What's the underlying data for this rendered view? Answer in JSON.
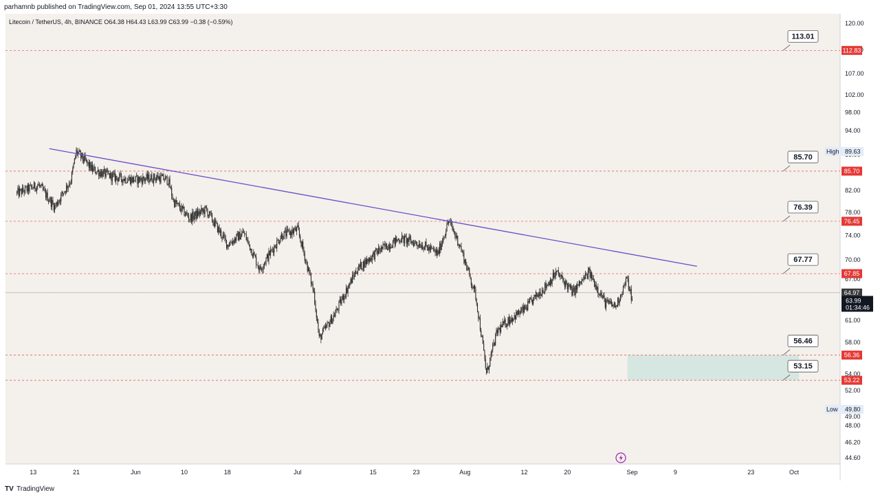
{
  "header": {
    "text": "parhamnb published on TradingView.com, Sep 01, 2024 13:55 UTC+3:30"
  },
  "footer": {
    "logo_glyph": "TV",
    "brand": "TradingView"
  },
  "colors": {
    "background": "#f4f0eb",
    "candle": "#2a2a2a",
    "trendline": "#6a4cc9",
    "level_line": "#e06666",
    "price_tag": "#e53935",
    "zone": "#d6e6e0",
    "last_price_bg": "#131722"
  },
  "chart_data": {
    "type": "candlestick",
    "symbol_info": "Litecoin / TetherUS, 4h, BINANCE  O64.38  H64.43  L63.99  C63.99  −0.38 (−0.59%)",
    "x_tick_labels": [
      "13",
      "21",
      "Jun",
      "10",
      "18",
      "Jul",
      "15",
      "23",
      "Aug",
      "12",
      "20",
      "Sep",
      "9",
      "23",
      "Oct"
    ],
    "y_tick_labels": [
      "120.00",
      "113.00",
      "107.00",
      "102.00",
      "98.00",
      "94.00",
      "89.00",
      "82.00",
      "78.00",
      "74.00",
      "70.00",
      "67.00",
      "61.00",
      "58.00",
      "54.00",
      "52.00",
      "49.00",
      "48.00",
      "46.20",
      "44.60"
    ],
    "price_series": {
      "sampled_close": [
        {
          "date": "2024-05-10",
          "close": 81.5
        },
        {
          "date": "2024-05-14",
          "close": 83.0
        },
        {
          "date": "2024-05-17",
          "close": 79.0
        },
        {
          "date": "2024-05-20",
          "close": 84.0
        },
        {
          "date": "2024-05-21",
          "close": 89.6
        },
        {
          "date": "2024-05-24",
          "close": 86.0
        },
        {
          "date": "2024-05-28",
          "close": 84.5
        },
        {
          "date": "2024-06-01",
          "close": 84.0
        },
        {
          "date": "2024-06-05",
          "close": 84.5
        },
        {
          "date": "2024-06-07",
          "close": 84.0
        },
        {
          "date": "2024-06-08",
          "close": 80.0
        },
        {
          "date": "2024-06-11",
          "close": 77.0
        },
        {
          "date": "2024-06-14",
          "close": 78.5
        },
        {
          "date": "2024-06-18",
          "close": 72.5
        },
        {
          "date": "2024-06-21",
          "close": 74.5
        },
        {
          "date": "2024-06-24",
          "close": 68.5
        },
        {
          "date": "2024-06-28",
          "close": 74.0
        },
        {
          "date": "2024-07-01",
          "close": 75.0
        },
        {
          "date": "2024-07-04",
          "close": 65.0
        },
        {
          "date": "2024-07-05",
          "close": 58.5
        },
        {
          "date": "2024-07-08",
          "close": 62.0
        },
        {
          "date": "2024-07-12",
          "close": 68.5
        },
        {
          "date": "2024-07-16",
          "close": 71.5
        },
        {
          "date": "2024-07-20",
          "close": 73.5
        },
        {
          "date": "2024-07-24",
          "close": 72.5
        },
        {
          "date": "2024-07-27",
          "close": 71.0
        },
        {
          "date": "2024-07-29",
          "close": 76.5
        },
        {
          "date": "2024-07-31",
          "close": 72.5
        },
        {
          "date": "2024-08-03",
          "close": 64.5
        },
        {
          "date": "2024-08-05",
          "close": 54.0
        },
        {
          "date": "2024-08-07",
          "close": 59.5
        },
        {
          "date": "2024-08-09",
          "close": 61.0
        },
        {
          "date": "2024-08-12",
          "close": 62.5
        },
        {
          "date": "2024-08-16",
          "close": 66.0
        },
        {
          "date": "2024-08-18",
          "close": 68.0
        },
        {
          "date": "2024-08-21",
          "close": 65.0
        },
        {
          "date": "2024-08-24",
          "close": 68.0
        },
        {
          "date": "2024-08-27",
          "close": 63.5
        },
        {
          "date": "2024-08-29",
          "close": 63.0
        },
        {
          "date": "2024-08-31",
          "close": 67.0
        },
        {
          "date": "2024-09-01",
          "close": 63.99
        }
      ]
    },
    "last_price": "63.99",
    "countdown": "01:34:46",
    "prev_price": "64.97",
    "high": {
      "label": "High",
      "value": "89.63"
    },
    "low": {
      "label": "Low",
      "value": "49.80"
    },
    "levels": [
      {
        "callout": "113.01",
        "tag": "112.83",
        "price": 112.83
      },
      {
        "callout": "85.70",
        "tag": "85.70",
        "price": 85.7
      },
      {
        "callout": "76.39",
        "tag": "76.45",
        "price": 76.45
      },
      {
        "callout": "67.77",
        "tag": "67.85",
        "price": 67.85
      },
      {
        "callout": "56.46",
        "tag": "56.36",
        "price": 56.36
      },
      {
        "callout": "53.15",
        "tag": "53.22",
        "price": 53.22
      }
    ],
    "trendline": {
      "from": {
        "date": "2024-05-16",
        "price": 90.2
      },
      "to": {
        "date": "2024-09-13",
        "price": 69.0
      }
    },
    "zone": {
      "from_date": "2024-08-31",
      "to_date": "2024-10-01",
      "low": 53.22,
      "high": 56.36
    }
  }
}
